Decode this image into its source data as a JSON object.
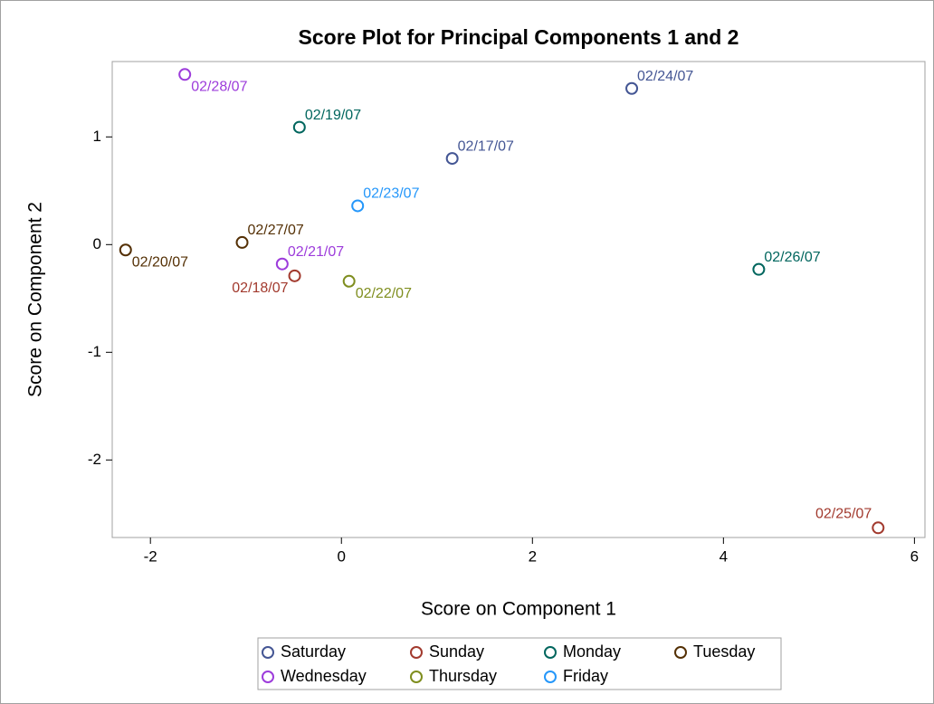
{
  "chart_data": {
    "type": "scatter",
    "title": "Score Plot for Principal Components 1 and 2",
    "x_label": "Score on Component 1",
    "y_label": "Score on Component 2",
    "xlim": [
      -2.4,
      6.11
    ],
    "xticks": [
      -2,
      0,
      2,
      4,
      6
    ],
    "ylim": [
      -2.72,
      1.7
    ],
    "yticks": [
      -2,
      -1,
      0,
      1
    ],
    "legend_position": "bottom",
    "series": [
      {
        "name": "Saturday",
        "color": "#445694",
        "x": [
          1.16,
          3.04
        ],
        "values": [
          0.8,
          1.45
        ],
        "labels": [
          "02/17/07",
          "02/24/07"
        ]
      },
      {
        "name": "Sunday",
        "color": "#A23A2E",
        "x": [
          -0.49,
          5.62
        ],
        "values": [
          -0.29,
          -2.63
        ],
        "labels": [
          "02/18/07",
          "02/25/07"
        ]
      },
      {
        "name": "Monday",
        "color": "#01665E",
        "x": [
          -0.44,
          4.37
        ],
        "values": [
          1.09,
          -0.23
        ],
        "labels": [
          "02/19/07",
          "02/26/07"
        ]
      },
      {
        "name": "Tuesday",
        "color": "#543005",
        "x": [
          -2.26,
          -1.04
        ],
        "values": [
          -0.05,
          0.02
        ],
        "labels": [
          "02/20/07",
          "02/27/07"
        ]
      },
      {
        "name": "Wednesday",
        "color": "#9D3CDB",
        "x": [
          -0.62,
          -1.64
        ],
        "values": [
          -0.18,
          1.58
        ],
        "labels": [
          "02/21/07",
          "02/28/07"
        ]
      },
      {
        "name": "Thursday",
        "color": "#7F8E1F",
        "x": [
          0.08
        ],
        "values": [
          -0.34
        ],
        "labels": [
          "02/22/07"
        ]
      },
      {
        "name": "Friday",
        "color": "#2597FA",
        "x": [
          0.17
        ],
        "values": [
          0.36
        ],
        "labels": [
          "02/23/07"
        ]
      }
    ]
  }
}
